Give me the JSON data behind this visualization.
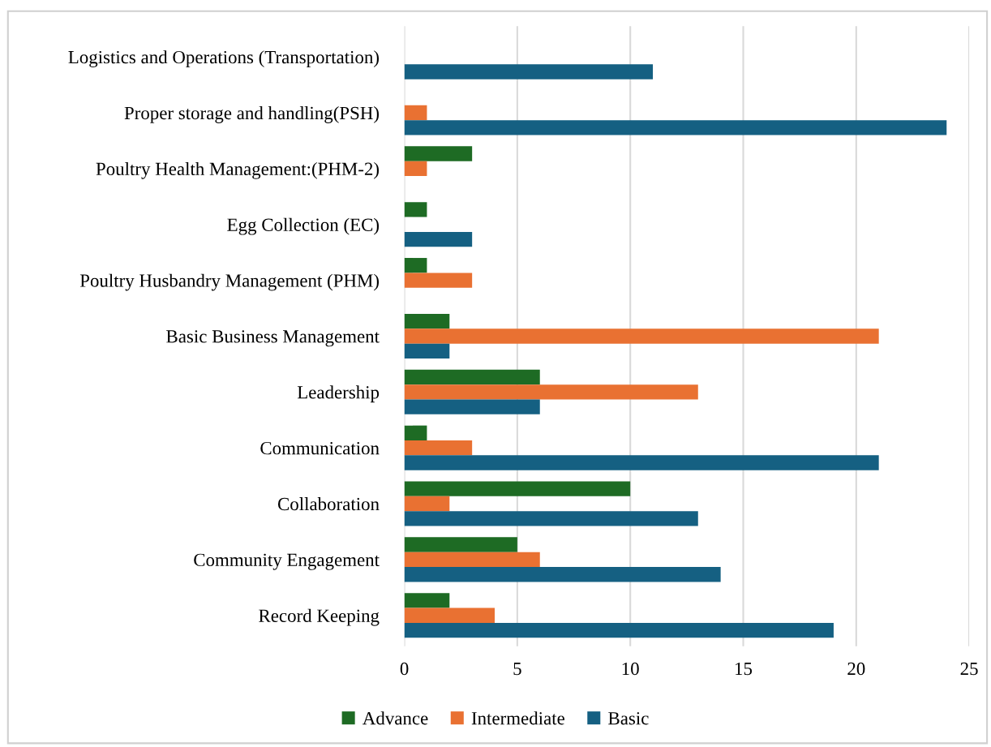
{
  "chart_data": {
    "type": "bar",
    "orientation": "horizontal",
    "categories": [
      "Logistics and Operations (Transportation)",
      "Proper storage and handling(PSH)",
      "Poultry Health Management:(PHM-2)",
      "Egg Collection (EC)",
      "Poultry Husbandry Management (PHM)",
      "Basic Business Management",
      "Leadership",
      "Communication",
      "Collaboration",
      "Community Engagement",
      "Record Keeping"
    ],
    "series": [
      {
        "name": "Advance",
        "color": "#1e6b24",
        "values": [
          null,
          null,
          3,
          1,
          1,
          2,
          6,
          1,
          10,
          5,
          2
        ]
      },
      {
        "name": "Intermediate",
        "color": "#e97132",
        "values": [
          null,
          1,
          1,
          null,
          3,
          21,
          13,
          3,
          2,
          6,
          4
        ]
      },
      {
        "name": "Basic",
        "color": "#156082",
        "values": [
          11,
          24,
          null,
          3,
          null,
          2,
          6,
          21,
          13,
          14,
          19
        ]
      }
    ],
    "xlim": [
      0,
      25
    ],
    "xticks": [
      0,
      5,
      10,
      15,
      20,
      25
    ],
    "grid": "x",
    "legend": "bottom"
  }
}
